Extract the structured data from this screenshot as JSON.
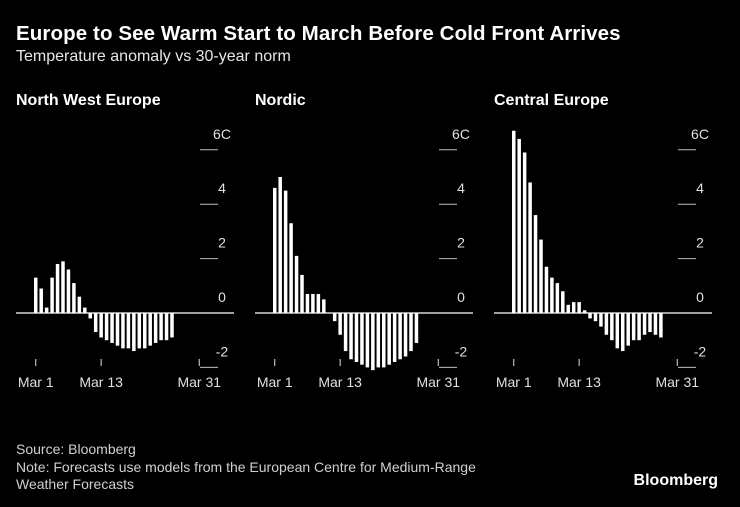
{
  "title": "Europe to See Warm Start to March Before Cold Front Arrives",
  "subtitle": "Temperature anomaly vs 30-year norm",
  "footer": {
    "source": "Source: Bloomberg",
    "note_line1": "Note: Forecasts use models from the European Centre for Medium-Range",
    "note_line2": "Weather Forecasts",
    "brand": "Bloomberg"
  },
  "colors": {
    "background": "#000000",
    "bars": "#ffffff",
    "text": "#ffffff"
  },
  "chart_data": [
    {
      "type": "bar",
      "title": "North West Europe",
      "x_start_day": 1,
      "x_tick_labels": [
        {
          "label": "Mar 1",
          "day": 1
        },
        {
          "label": "Mar 13",
          "day": 13
        },
        {
          "label": "Mar 31",
          "day": 31
        }
      ],
      "y_tick_labels": [
        "6C",
        "4",
        "2",
        "0",
        "-2"
      ],
      "y_ticks": [
        6,
        4,
        2,
        0,
        -2
      ],
      "ylim": [
        -2.2,
        6.6
      ],
      "values": [
        1.3,
        0.9,
        0.2,
        1.3,
        1.8,
        1.9,
        1.6,
        1.1,
        0.6,
        0.2,
        -0.2,
        -0.7,
        -0.9,
        -1.0,
        -1.1,
        -1.2,
        -1.3,
        -1.3,
        -1.4,
        -1.3,
        -1.3,
        -1.2,
        -1.1,
        -1.0,
        -1.0,
        -0.9
      ]
    },
    {
      "type": "bar",
      "title": "Nordic",
      "x_start_day": 1,
      "x_tick_labels": [
        {
          "label": "Mar 1",
          "day": 1
        },
        {
          "label": "Mar 13",
          "day": 13
        },
        {
          "label": "Mar 31",
          "day": 31
        }
      ],
      "y_tick_labels": [
        "6C",
        "4",
        "2",
        "0",
        "-2"
      ],
      "y_ticks": [
        6,
        4,
        2,
        0,
        -2
      ],
      "ylim": [
        -2.2,
        6.6
      ],
      "values": [
        4.6,
        5.0,
        4.5,
        3.3,
        2.1,
        1.4,
        0.7,
        0.7,
        0.7,
        0.5,
        0.0,
        -0.3,
        -0.8,
        -1.4,
        -1.7,
        -1.8,
        -1.9,
        -2.0,
        -2.1,
        -2.0,
        -2.0,
        -1.9,
        -1.8,
        -1.7,
        -1.6,
        -1.4,
        -1.1
      ]
    },
    {
      "type": "bar",
      "title": "Central Europe",
      "x_start_day": 1,
      "x_tick_labels": [
        {
          "label": "Mar 1",
          "day": 1
        },
        {
          "label": "Mar 13",
          "day": 13
        },
        {
          "label": "Mar 31",
          "day": 31
        }
      ],
      "y_tick_labels": [
        "6C",
        "4",
        "2",
        "0",
        "-2"
      ],
      "y_ticks": [
        6,
        4,
        2,
        0,
        -2
      ],
      "ylim": [
        -2.2,
        6.6
      ],
      "values": [
        6.7,
        6.4,
        5.9,
        4.8,
        3.6,
        2.7,
        1.7,
        1.3,
        1.1,
        0.8,
        0.3,
        0.4,
        0.4,
        0.1,
        -0.2,
        -0.3,
        -0.5,
        -0.8,
        -1.0,
        -1.3,
        -1.4,
        -1.2,
        -1.0,
        -1.0,
        -0.8,
        -0.7,
        -0.8,
        -0.9
      ]
    }
  ]
}
